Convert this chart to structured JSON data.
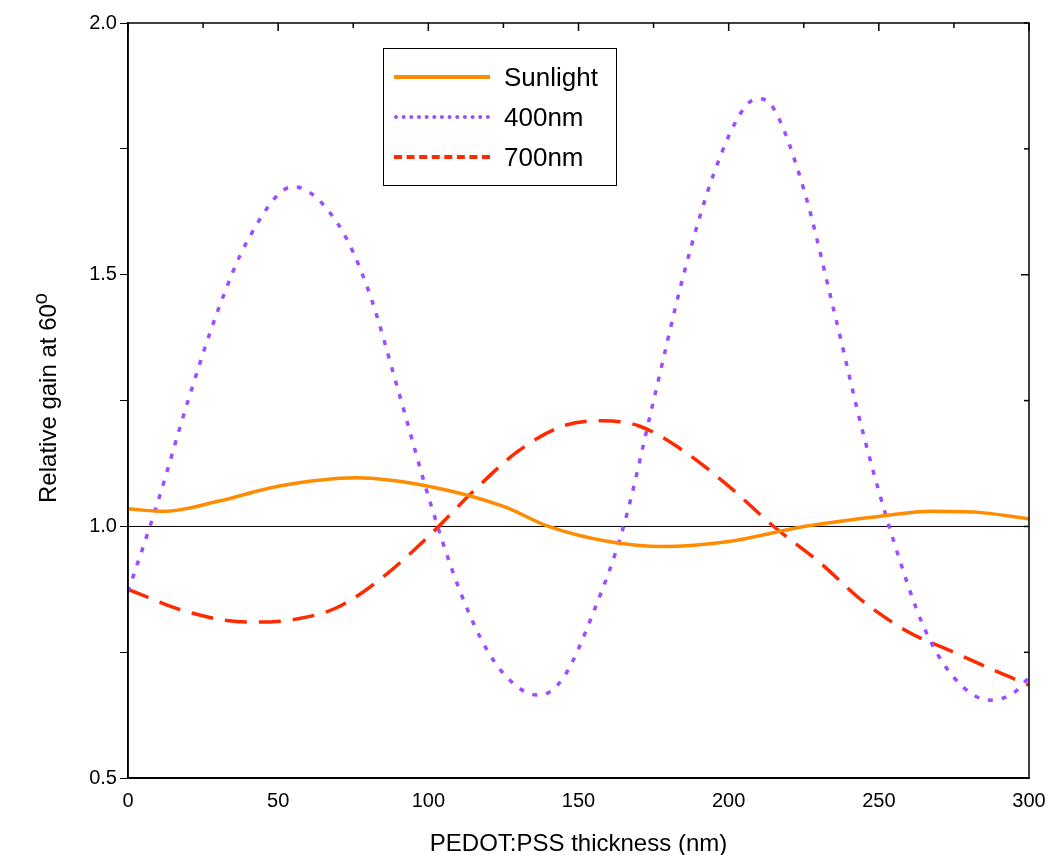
{
  "chart_data": {
    "type": "line",
    "xlabel": "PEDOT:PSS thickness (nm)",
    "ylabel": "Relative gain at 60$^{o}$",
    "xlim": [
      0,
      300
    ],
    "xticks": [
      0,
      {
        "value": 25,
        "label": null
      },
      50,
      {
        "value": 75,
        "label": null
      },
      100,
      {
        "value": 125,
        "label": null
      },
      150,
      {
        "value": 175,
        "label": null
      },
      200,
      {
        "value": 225,
        "label": null
      },
      250,
      {
        "value": 275,
        "label": null
      },
      300
    ],
    "ylim": [
      0.5,
      2.0
    ],
    "yticks": [
      0.5,
      {
        "value": 0.75,
        "label": null
      },
      {
        "value": 1,
        "label": "1.0"
      },
      {
        "value": 1.25,
        "label": null
      },
      1.5,
      {
        "value": 1.75,
        "label": null
      },
      {
        "value": 2,
        "label": "2.0"
      }
    ],
    "grid": false,
    "legend": "top",
    "marker": "none",
    "ref_lines": [
      {
        "axis": "y",
        "value": 1.0,
        "color": "#000000",
        "line_style": "solid"
      }
    ],
    "series": [
      {
        "name": "Sunlight",
        "color": "#ff8c00",
        "line_style": "solid",
        "x": [
          0,
          12,
          30,
          50,
          76,
          100,
          125,
          140,
          160,
          178,
          200,
          225,
          250,
          268,
          285,
          300
        ],
        "values": [
          1.035,
          1.03,
          1.05,
          1.08,
          1.097,
          1.08,
          1.04,
          1.0,
          0.97,
          0.96,
          0.97,
          1.0,
          1.02,
          1.03,
          1.027,
          1.015
        ]
      },
      {
        "name": "400nm",
        "color": "#9b4dff",
        "line_style": "dotted",
        "x": [
          0,
          10,
          20,
          30,
          40,
          55,
          70,
          80,
          90,
          100,
          110,
          120,
          130,
          137,
          145,
          155,
          165,
          175,
          185,
          195,
          205,
          210,
          215,
          225,
          235,
          245,
          255,
          265,
          275,
          287,
          295,
          300
        ],
        "values": [
          0.87,
          1.05,
          1.25,
          1.43,
          1.57,
          1.675,
          1.6,
          1.47,
          1.27,
          1.06,
          0.88,
          0.75,
          0.68,
          0.665,
          0.7,
          0.83,
          1.0,
          1.25,
          1.5,
          1.7,
          1.83,
          1.85,
          1.83,
          1.67,
          1.43,
          1.18,
          0.97,
          0.8,
          0.7,
          0.655,
          0.67,
          0.7
        ]
      },
      {
        "name": "700nm",
        "color": "#ff2a00",
        "line_style": "dashed",
        "x": [
          0,
          20,
          40,
          55,
          70,
          85,
          100,
          115,
          130,
          145,
          158,
          170,
          185,
          200,
          215,
          230,
          245,
          260,
          275,
          290,
          300
        ],
        "values": [
          0.875,
          0.83,
          0.81,
          0.815,
          0.84,
          0.9,
          0.98,
          1.07,
          1.15,
          1.2,
          1.21,
          1.2,
          1.15,
          1.08,
          1.0,
          0.93,
          0.85,
          0.79,
          0.75,
          0.71,
          0.685
        ]
      }
    ]
  }
}
